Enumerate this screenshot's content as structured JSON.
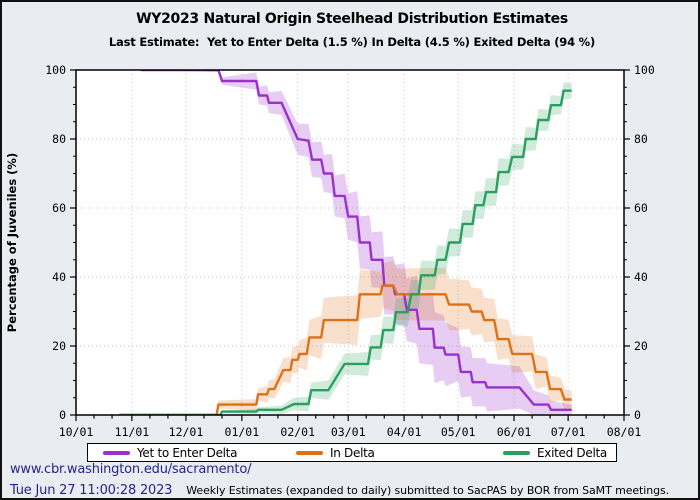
{
  "header": {
    "title": "WY2023 Natural Origin Steelhead Distribution Estimates",
    "subtitle": "Last Estimate:  Yet to Enter Delta (1.5 %) In Delta (4.5 %) Exited Delta (94 %)"
  },
  "chart_data": {
    "type": "line",
    "title": "WY2023 Natural Origin Steelhead Distribution Estimates",
    "xlabel": "",
    "ylabel": "Percentage of Juveniles (%)",
    "ylim": [
      0,
      100
    ],
    "grid": true,
    "legend_position": "bottom",
    "x_axis": {
      "tick_labels": [
        "10/01",
        "11/01",
        "12/01",
        "01/01",
        "02/01",
        "03/01",
        "04/01",
        "05/01",
        "06/01",
        "07/01",
        "08/01"
      ],
      "tick_days": [
        0,
        31,
        61,
        92,
        123,
        151,
        182,
        212,
        243,
        273,
        304
      ],
      "minor_day_offsets": [
        10,
        20
      ],
      "range_days": [
        0,
        304
      ]
    },
    "y_axis": {
      "ticks": [
        0,
        20,
        40,
        60,
        80,
        100
      ],
      "minor_step": 5,
      "label": "Percentage of Juveniles (%)"
    },
    "series": [
      {
        "name": "Yet to Enter Delta",
        "last_estimate": "1.5 %",
        "color": "#9a30ce",
        "band_color": "rgba(154,48,206,0.24)",
        "points": [
          [
            36,
            100
          ],
          [
            79,
            100
          ],
          [
            81,
            96.8
          ],
          [
            100,
            96.8
          ],
          [
            101.5,
            92.6
          ],
          [
            106,
            92.6
          ],
          [
            107,
            90.5
          ],
          [
            114,
            90.5
          ],
          [
            123,
            80
          ],
          [
            129,
            79.5
          ],
          [
            131,
            74
          ],
          [
            136,
            74
          ],
          [
            137.5,
            70
          ],
          [
            142,
            70
          ],
          [
            143.5,
            63.5
          ],
          [
            149,
            63.5
          ],
          [
            151,
            57.5
          ],
          [
            156,
            57.5
          ],
          [
            157.5,
            50
          ],
          [
            163,
            50
          ],
          [
            164,
            45
          ],
          [
            170,
            45
          ],
          [
            171,
            37.5
          ],
          [
            176,
            37.5
          ],
          [
            177,
            35
          ],
          [
            182,
            35
          ],
          [
            183.5,
            30.5
          ],
          [
            189,
            30.5
          ],
          [
            190.5,
            25
          ],
          [
            198,
            25
          ],
          [
            199,
            19.5
          ],
          [
            204,
            19.5
          ],
          [
            205,
            17.5
          ],
          [
            212,
            17.5
          ],
          [
            213.5,
            12.5
          ],
          [
            219,
            12.5
          ],
          [
            220,
            9.5
          ],
          [
            227,
            9.5
          ],
          [
            228,
            8
          ],
          [
            246,
            8
          ],
          [
            254,
            3
          ],
          [
            262,
            3
          ],
          [
            263.5,
            1.5
          ],
          [
            275,
            1.5
          ]
        ],
        "band_half_width": [
          [
            36,
            0
          ],
          [
            79,
            0.6
          ],
          [
            85,
            2
          ],
          [
            100,
            2.5
          ],
          [
            107,
            3
          ],
          [
            114,
            3.5
          ],
          [
            123,
            4.5
          ],
          [
            131,
            5
          ],
          [
            140,
            5.5
          ],
          [
            149,
            6.5
          ],
          [
            157,
            7.5
          ],
          [
            165,
            8
          ],
          [
            176,
            8.5
          ],
          [
            183,
            9
          ],
          [
            190,
            10
          ],
          [
            198,
            10.5
          ],
          [
            206,
            9
          ],
          [
            213,
            7.5
          ],
          [
            220,
            7
          ],
          [
            235,
            7
          ],
          [
            248,
            6
          ],
          [
            256,
            3.5
          ],
          [
            264,
            2.5
          ],
          [
            275,
            1.5
          ]
        ]
      },
      {
        "name": "In Delta",
        "last_estimate": "4.5 %",
        "color": "#dd7118",
        "band_color": "rgba(221,113,24,0.22)",
        "points": [
          [
            24,
            0
          ],
          [
            78,
            0
          ],
          [
            79,
            3
          ],
          [
            100,
            3
          ],
          [
            101,
            6
          ],
          [
            106,
            6
          ],
          [
            107,
            7.5
          ],
          [
            110,
            7.5
          ],
          [
            115,
            13
          ],
          [
            119,
            13
          ],
          [
            120,
            16
          ],
          [
            123,
            16
          ],
          [
            124,
            17.7
          ],
          [
            128,
            17.7
          ],
          [
            129.5,
            22.5
          ],
          [
            136,
            22.5
          ],
          [
            137.5,
            27.5
          ],
          [
            156,
            27.5
          ],
          [
            157.5,
            35
          ],
          [
            169,
            35
          ],
          [
            170,
            37.5
          ],
          [
            176,
            37.5
          ],
          [
            178,
            35
          ],
          [
            205,
            35
          ],
          [
            207,
            32
          ],
          [
            218,
            32
          ],
          [
            219.5,
            30
          ],
          [
            225,
            30
          ],
          [
            226.5,
            27.5
          ],
          [
            232,
            27.5
          ],
          [
            234,
            22
          ],
          [
            240,
            22
          ],
          [
            242,
            17.7
          ],
          [
            253,
            17.7
          ],
          [
            255,
            12.5
          ],
          [
            261,
            12.5
          ],
          [
            263,
            7.5
          ],
          [
            269,
            7.5
          ],
          [
            271,
            4.5
          ],
          [
            275,
            4.5
          ]
        ],
        "band_half_width": [
          [
            24,
            0
          ],
          [
            78,
            0.4
          ],
          [
            79,
            1.2
          ],
          [
            100,
            1.6
          ],
          [
            107,
            2.5
          ],
          [
            115,
            3.5
          ],
          [
            124,
            4
          ],
          [
            129,
            5
          ],
          [
            137,
            6.5
          ],
          [
            151,
            7.5
          ],
          [
            160,
            7
          ],
          [
            170,
            6.5
          ],
          [
            178,
            7.5
          ],
          [
            190,
            8
          ],
          [
            200,
            8
          ],
          [
            207,
            7.5
          ],
          [
            219,
            7
          ],
          [
            226,
            6.5
          ],
          [
            234,
            6
          ],
          [
            242,
            5.5
          ],
          [
            255,
            5
          ],
          [
            263,
            4
          ],
          [
            271,
            3
          ],
          [
            275,
            2.5
          ]
        ]
      },
      {
        "name": "Exited Delta",
        "last_estimate": "94 %",
        "color": "#2aa05f",
        "band_color": "rgba(42,160,95,0.22)",
        "points": [
          [
            24,
            0
          ],
          [
            80,
            0
          ],
          [
            81,
            1
          ],
          [
            100,
            1
          ],
          [
            101,
            1.5
          ],
          [
            114,
            1.5
          ],
          [
            121,
            3.2
          ],
          [
            129,
            3.2
          ],
          [
            130.5,
            7.2
          ],
          [
            140,
            7.2
          ],
          [
            149,
            14.8
          ],
          [
            162,
            14.8
          ],
          [
            163.5,
            19.6
          ],
          [
            169,
            19.6
          ],
          [
            170.5,
            24.6
          ],
          [
            176,
            24.6
          ],
          [
            177.5,
            29.8
          ],
          [
            184,
            29.8
          ],
          [
            186,
            35
          ],
          [
            190,
            35
          ],
          [
            191.5,
            40.5
          ],
          [
            199,
            40.5
          ],
          [
            200.5,
            45
          ],
          [
            205,
            45
          ],
          [
            207,
            50
          ],
          [
            213,
            50
          ],
          [
            214.5,
            55.4
          ],
          [
            220,
            55.4
          ],
          [
            221.5,
            60.8
          ],
          [
            226,
            60.8
          ],
          [
            227.5,
            64.6
          ],
          [
            233,
            64.6
          ],
          [
            234.5,
            70.4
          ],
          [
            240,
            70.4
          ],
          [
            242,
            74.8
          ],
          [
            248,
            74.8
          ],
          [
            249.5,
            80
          ],
          [
            255,
            80
          ],
          [
            256.5,
            85.5
          ],
          [
            262,
            85.5
          ],
          [
            263.5,
            89.8
          ],
          [
            269,
            89.8
          ],
          [
            270.5,
            94
          ],
          [
            275,
            94
          ]
        ],
        "band_half_width": [
          [
            24,
            0
          ],
          [
            80,
            0.3
          ],
          [
            101,
            0.8
          ],
          [
            114,
            1.2
          ],
          [
            121,
            1.8
          ],
          [
            130,
            2.2
          ],
          [
            140,
            2.8
          ],
          [
            149,
            3
          ],
          [
            163,
            3.5
          ],
          [
            170,
            3.8
          ],
          [
            177,
            4
          ],
          [
            190,
            4.2
          ],
          [
            200,
            4.2
          ],
          [
            212,
            4
          ],
          [
            221,
            4
          ],
          [
            234,
            4
          ],
          [
            242,
            3.8
          ],
          [
            249,
            3.5
          ],
          [
            256,
            3.2
          ],
          [
            263,
            3
          ],
          [
            270,
            2.5
          ],
          [
            275,
            2.2
          ]
        ]
      }
    ]
  },
  "legend": {
    "items": [
      {
        "label": "Yet to Enter Delta",
        "color": "#9a30ce"
      },
      {
        "label": "In Delta",
        "color": "#dd7118"
      },
      {
        "label": "Exited Delta",
        "color": "#2aa05f"
      }
    ]
  },
  "footer": {
    "link": "www.cbr.washington.edu/sacramento/",
    "datetime": "Tue Jun 27 11:00:28 2023",
    "note": "Weekly Estimates (expanded to daily) submitted to SacPAS by BOR from SaMT meetings."
  }
}
